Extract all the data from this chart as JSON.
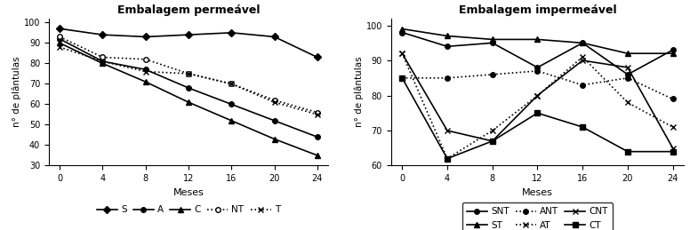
{
  "x": [
    0,
    4,
    8,
    12,
    16,
    20,
    24
  ],
  "left_title": "Embalagem permeável",
  "right_title": "Embalagem impermeável",
  "xlabel": "Meses",
  "ylabel": "n° de plântulas",
  "left_ylim": [
    30,
    102
  ],
  "right_ylim": [
    60,
    102
  ],
  "left_yticks": [
    30,
    40,
    50,
    60,
    70,
    80,
    90,
    100
  ],
  "right_yticks": [
    60,
    70,
    80,
    90,
    100
  ],
  "left_series": {
    "S": [
      97,
      94,
      93,
      94,
      95,
      93,
      83
    ],
    "A": [
      92,
      81,
      77,
      68,
      60,
      52,
      44
    ],
    "C": [
      90,
      80,
      71,
      61,
      52,
      43,
      35
    ],
    "NT": [
      93,
      83,
      82,
      75,
      70,
      62,
      56
    ],
    "T": [
      88,
      81,
      76,
      75,
      70,
      61,
      55
    ]
  },
  "right_series": {
    "SNT": [
      98,
      94,
      95,
      88,
      95,
      86,
      93
    ],
    "ST": [
      99,
      97,
      96,
      96,
      95,
      92,
      92
    ],
    "ANT": [
      85,
      85,
      86,
      87,
      83,
      85,
      79
    ],
    "AT": [
      92,
      62,
      70,
      80,
      91,
      78,
      71
    ],
    "CNT": [
      92,
      70,
      67,
      80,
      90,
      88,
      65
    ],
    "CT": [
      85,
      62,
      67,
      75,
      71,
      64,
      64
    ]
  },
  "left_styles": {
    "S": {
      "color": "#000000",
      "linestyle": "-",
      "marker": "D",
      "markersize": 4,
      "markerfacecolor": "#000000",
      "linewidth": 1.2
    },
    "A": {
      "color": "#000000",
      "linestyle": "-",
      "marker": "o",
      "markersize": 4,
      "markerfacecolor": "#000000",
      "linewidth": 1.2
    },
    "C": {
      "color": "#000000",
      "linestyle": "-",
      "marker": "^",
      "markersize": 4,
      "markerfacecolor": "#000000",
      "linewidth": 1.2
    },
    "NT": {
      "color": "#000000",
      "linestyle": ":",
      "marker": "o",
      "markersize": 4,
      "markerfacecolor": "#ffffff",
      "linewidth": 1.2
    },
    "T": {
      "color": "#000000",
      "linestyle": ":",
      "marker": "x",
      "markersize": 5,
      "markerfacecolor": "#000000",
      "linewidth": 1.2
    }
  },
  "right_styles": {
    "SNT": {
      "color": "#000000",
      "linestyle": "-",
      "marker": "o",
      "markersize": 4,
      "markerfacecolor": "#000000",
      "linewidth": 1.2
    },
    "ST": {
      "color": "#000000",
      "linestyle": "-",
      "marker": "^",
      "markersize": 4,
      "markerfacecolor": "#000000",
      "linewidth": 1.2
    },
    "ANT": {
      "color": "#000000",
      "linestyle": ":",
      "marker": "o",
      "markersize": 4,
      "markerfacecolor": "#000000",
      "linewidth": 1.2
    },
    "AT": {
      "color": "#000000",
      "linestyle": ":",
      "marker": "x",
      "markersize": 5,
      "markerfacecolor": "#000000",
      "linewidth": 1.2
    },
    "CNT": {
      "color": "#000000",
      "linestyle": "-",
      "marker": "x",
      "markersize": 5,
      "markerfacecolor": "#000000",
      "linewidth": 1.2
    },
    "CT": {
      "color": "#000000",
      "linestyle": "-",
      "marker": "s",
      "markersize": 4,
      "markerfacecolor": "#000000",
      "linewidth": 1.2
    }
  },
  "left_legend_order": [
    "S",
    "A",
    "C",
    "NT",
    "T"
  ],
  "right_legend_order": [
    "SNT",
    "ST",
    "ANT",
    "AT",
    "CNT",
    "CT"
  ],
  "figsize": [
    7.85,
    2.59
  ],
  "dpi": 100
}
